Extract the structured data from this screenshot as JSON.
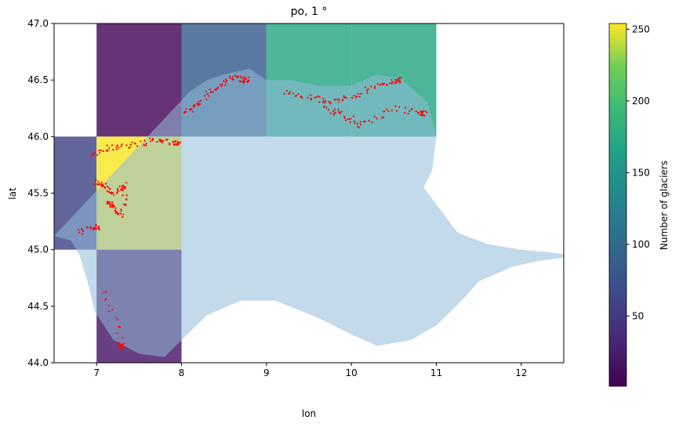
{
  "chart_data": {
    "type": "heatmap",
    "title": "po, 1 °",
    "xlabel": "lon",
    "ylabel": "lat",
    "xlim": [
      6.5,
      12.5
    ],
    "ylim": [
      44.0,
      47.0
    ],
    "xticks": [
      7,
      8,
      9,
      10,
      11,
      12
    ],
    "yticks": [
      44.0,
      44.5,
      45.0,
      45.5,
      46.0,
      46.5,
      47.0
    ],
    "xtick_labels": [
      "7",
      "8",
      "9",
      "10",
      "11",
      "12"
    ],
    "ytick_labels": [
      "44.0",
      "44.5",
      "45.0",
      "45.5",
      "46.0",
      "46.5",
      "47.0"
    ],
    "cells": [
      {
        "lon": [
          7,
          8
        ],
        "lat": [
          46,
          47
        ],
        "value": 5
      },
      {
        "lon": [
          8,
          9
        ],
        "lat": [
          46,
          47
        ],
        "value": 85
      },
      {
        "lon": [
          9,
          10
        ],
        "lat": [
          46,
          47
        ],
        "value": 170
      },
      {
        "lon": [
          10,
          11
        ],
        "lat": [
          46,
          47
        ],
        "value": 170
      },
      {
        "lon": [
          6.5,
          7
        ],
        "lat": [
          45,
          46
        ],
        "value": 60
      },
      {
        "lon": [
          7,
          8
        ],
        "lat": [
          45,
          46
        ],
        "value": 253
      },
      {
        "lon": [
          7,
          8
        ],
        "lat": [
          44,
          45
        ],
        "value": 18
      }
    ],
    "basin_color": "#8fbbd9",
    "glacier_marker_color": "#ff0000",
    "colorbar": {
      "label": "Number of glaciers",
      "range": [
        1,
        254
      ],
      "ticks": [
        50,
        100,
        150,
        200,
        250
      ],
      "tick_labels": [
        "50",
        "100",
        "150",
        "200",
        "250"
      ],
      "colormap": "viridis"
    },
    "basin_outline": [
      [
        8.1,
        46.4
      ],
      [
        8.3,
        46.5
      ],
      [
        8.5,
        46.55
      ],
      [
        8.8,
        46.6
      ],
      [
        9.0,
        46.5
      ],
      [
        9.3,
        46.5
      ],
      [
        9.6,
        46.45
      ],
      [
        10.0,
        46.45
      ],
      [
        10.3,
        46.55
      ],
      [
        10.6,
        46.5
      ],
      [
        10.9,
        46.3
      ],
      [
        11.0,
        46.0
      ],
      [
        10.95,
        45.7
      ],
      [
        10.85,
        45.55
      ],
      [
        11.0,
        45.4
      ],
      [
        11.25,
        45.15
      ],
      [
        11.6,
        45.05
      ],
      [
        12.0,
        45.0
      ],
      [
        12.3,
        44.98
      ],
      [
        12.5,
        44.96
      ],
      [
        12.5,
        44.93
      ],
      [
        12.2,
        44.9
      ],
      [
        11.9,
        44.85
      ],
      [
        11.5,
        44.72
      ],
      [
        11.3,
        44.55
      ],
      [
        11.0,
        44.33
      ],
      [
        10.7,
        44.2
      ],
      [
        10.3,
        44.15
      ],
      [
        10.0,
        44.25
      ],
      [
        9.6,
        44.4
      ],
      [
        9.1,
        44.55
      ],
      [
        8.7,
        44.55
      ],
      [
        8.3,
        44.42
      ],
      [
        8.0,
        44.2
      ],
      [
        7.8,
        44.05
      ],
      [
        7.5,
        44.08
      ],
      [
        7.2,
        44.2
      ],
      [
        6.98,
        44.45
      ],
      [
        6.9,
        44.7
      ],
      [
        6.8,
        44.95
      ],
      [
        6.7,
        45.08
      ],
      [
        6.5,
        45.12
      ]
    ],
    "glacier_clusters": [
      [
        [
          6.95,
          45.85
        ],
        [
          7.15,
          45.9
        ],
        [
          7.45,
          45.93
        ],
        [
          7.7,
          45.97
        ],
        [
          7.95,
          45.94
        ]
      ],
      [
        [
          7.0,
          45.6
        ],
        [
          7.1,
          45.55
        ],
        [
          7.2,
          45.5
        ],
        [
          7.35,
          45.58
        ],
        [
          7.3,
          45.3
        ],
        [
          7.15,
          45.4
        ]
      ],
      [
        [
          6.8,
          45.15
        ],
        [
          7.0,
          45.2
        ]
      ],
      [
        [
          8.05,
          46.2
        ],
        [
          8.2,
          46.3
        ],
        [
          8.4,
          46.42
        ],
        [
          8.6,
          46.52
        ],
        [
          8.75,
          46.5
        ]
      ],
      [
        [
          9.2,
          46.4
        ],
        [
          9.5,
          46.35
        ],
        [
          9.75,
          46.3
        ],
        [
          10.0,
          46.35
        ],
        [
          10.3,
          46.45
        ],
        [
          10.55,
          46.5
        ]
      ],
      [
        [
          9.7,
          46.25
        ],
        [
          9.9,
          46.2
        ],
        [
          10.1,
          46.1
        ],
        [
          10.5,
          46.25
        ],
        [
          10.85,
          46.2
        ]
      ],
      [
        [
          7.1,
          44.65
        ],
        [
          7.3,
          44.15
        ]
      ]
    ]
  }
}
